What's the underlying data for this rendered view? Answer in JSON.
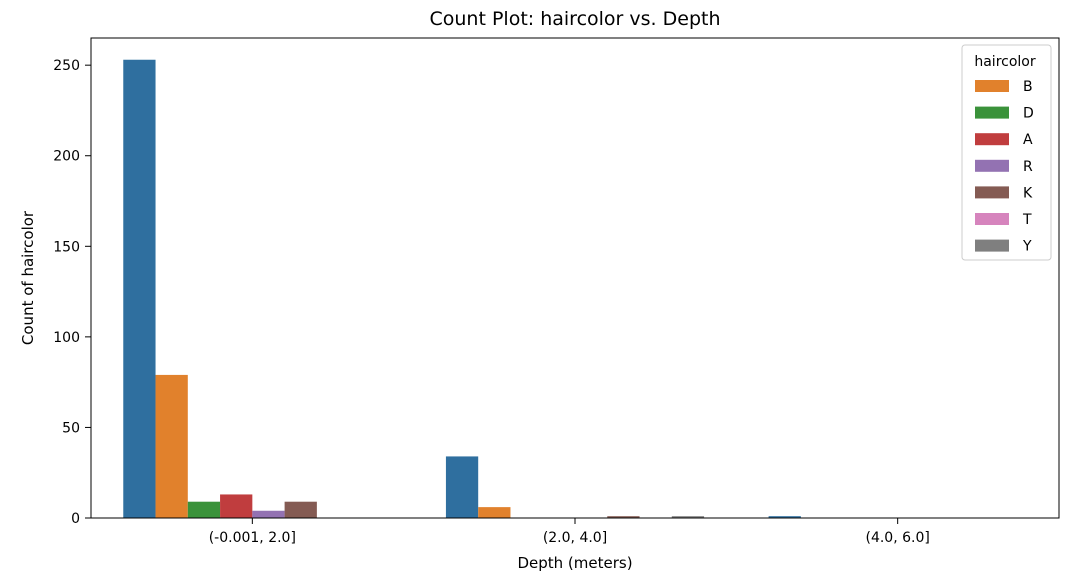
{
  "chart_data": {
    "type": "bar",
    "title": "Count Plot: haircolor vs. Depth",
    "xlabel": "Depth (meters)",
    "ylabel": "Count of haircolor",
    "categories": [
      "(-0.001, 2.0]",
      "(2.0, 4.0]",
      "(4.0, 6.0]"
    ],
    "ylim": [
      0,
      265
    ],
    "yticks": [
      0,
      50,
      100,
      150,
      200,
      250
    ],
    "grid": false,
    "legend": {
      "title": "haircolor",
      "placement": "top-right"
    },
    "series": [
      {
        "name": "",
        "color": "#2f6f9f",
        "values": [
          253,
          34,
          1
        ]
      },
      {
        "name": "B",
        "color": "#e1812c",
        "values": [
          79,
          6,
          0
        ]
      },
      {
        "name": "D",
        "color": "#3a923a",
        "values": [
          9,
          0,
          0
        ]
      },
      {
        "name": "A",
        "color": "#c03d3e",
        "values": [
          13,
          0,
          0
        ]
      },
      {
        "name": "R",
        "color": "#9372b2",
        "values": [
          4,
          0,
          0
        ]
      },
      {
        "name": "K",
        "color": "#845b53",
        "values": [
          9,
          1,
          0
        ]
      },
      {
        "name": "T",
        "color": "#d684bd",
        "values": [
          0,
          0,
          0
        ]
      },
      {
        "name": "Y",
        "color": "#7f7f7f",
        "values": [
          0,
          1,
          0
        ]
      }
    ]
  }
}
